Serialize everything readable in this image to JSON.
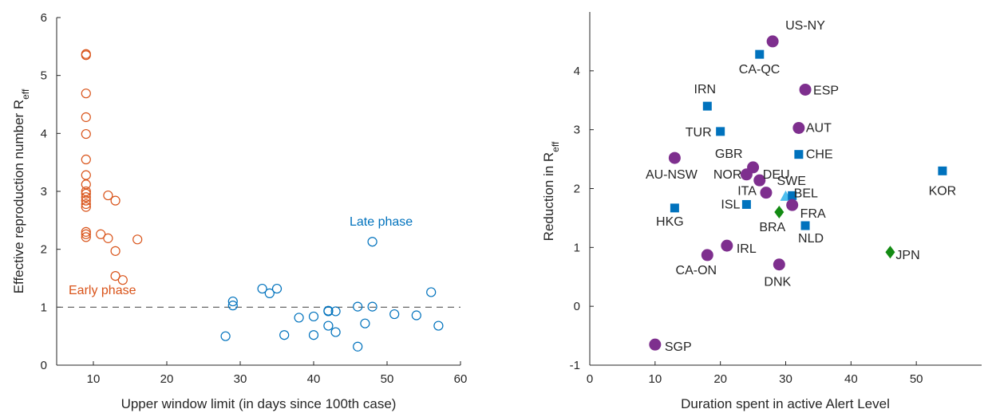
{
  "chart_data": [
    {
      "type": "scatter",
      "xlabel": "Upper window limit (in days since 100th case)",
      "ylabel_main": "Effective reproduction number R",
      "ylabel_sub": "eff",
      "xlim": [
        5,
        60
      ],
      "ylim": [
        0,
        6
      ],
      "xticks": [
        "10",
        "20",
        "30",
        "40",
        "50",
        "60"
      ],
      "yticks": [
        "0",
        "1",
        "2",
        "3",
        "4",
        "5",
        "6"
      ],
      "reference_line_y": 1,
      "series": [
        {
          "name": "Early phase",
          "color": "#D95319",
          "marker": "open-circle",
          "points": [
            [
              9,
              5.37
            ],
            [
              9,
              5.35
            ],
            [
              9,
              4.69
            ],
            [
              9,
              4.28
            ],
            [
              9,
              3.99
            ],
            [
              9,
              3.55
            ],
            [
              9,
              3.28
            ],
            [
              9,
              3.12
            ],
            [
              9,
              3.0
            ],
            [
              9,
              2.96
            ],
            [
              9,
              2.9
            ],
            [
              9,
              2.84
            ],
            [
              9,
              2.78
            ],
            [
              9,
              2.73
            ],
            [
              9,
              2.3
            ],
            [
              9,
              2.26
            ],
            [
              9,
              2.21
            ],
            [
              11,
              2.26
            ],
            [
              12,
              2.93
            ],
            [
              12,
              2.19
            ],
            [
              13,
              2.84
            ],
            [
              13,
              1.97
            ],
            [
              13,
              1.54
            ],
            [
              14,
              1.47
            ],
            [
              16,
              2.17
            ]
          ]
        },
        {
          "name": "Late phase",
          "color": "#0072BD",
          "marker": "open-circle",
          "points": [
            [
              28,
              0.5
            ],
            [
              29,
              1.1
            ],
            [
              29,
              1.03
            ],
            [
              33,
              1.32
            ],
            [
              34,
              1.24
            ],
            [
              35,
              1.32
            ],
            [
              36,
              0.52
            ],
            [
              38,
              0.82
            ],
            [
              40,
              0.84
            ],
            [
              40,
              0.52
            ],
            [
              42,
              0.94
            ],
            [
              42,
              0.93
            ],
            [
              42,
              0.68
            ],
            [
              43,
              0.93
            ],
            [
              43,
              0.57
            ],
            [
              46,
              1.01
            ],
            [
              46,
              0.32
            ],
            [
              47,
              0.72
            ],
            [
              48,
              1.01
            ],
            [
              48,
              2.13
            ],
            [
              51,
              0.88
            ],
            [
              54,
              0.86
            ],
            [
              56,
              1.26
            ],
            [
              57,
              0.68
            ]
          ]
        }
      ]
    },
    {
      "type": "scatter",
      "xlabel": "Duration spent in active Alert Level",
      "ylabel_main": "Reduction in R",
      "ylabel_sub": "eff",
      "xlim": [
        0,
        60
      ],
      "ylim": [
        -1,
        5
      ],
      "xticks": [
        "0",
        "10",
        "20",
        "30",
        "40",
        "50"
      ],
      "yticks": [
        "-1",
        "0",
        "1",
        "2",
        "3",
        "4"
      ],
      "points": [
        {
          "label": "US-NY",
          "x": 28,
          "y": 4.5,
          "marker": "circle",
          "color": "#7E2F8E"
        },
        {
          "label": "CA-QC",
          "x": 26,
          "y": 4.28,
          "marker": "square",
          "color": "#0072BD"
        },
        {
          "label": "ESP",
          "x": 33,
          "y": 3.68,
          "marker": "circle",
          "color": "#7E2F8E"
        },
        {
          "label": "IRN",
          "x": 18,
          "y": 3.4,
          "marker": "square",
          "color": "#0072BD"
        },
        {
          "label": "AUT",
          "x": 32,
          "y": 3.03,
          "marker": "circle",
          "color": "#7E2F8E"
        },
        {
          "label": "TUR",
          "x": 20,
          "y": 2.97,
          "marker": "square",
          "color": "#0072BD"
        },
        {
          "label": "CHE",
          "x": 32,
          "y": 2.58,
          "marker": "square",
          "color": "#0072BD"
        },
        {
          "label": "AU-NSW",
          "x": 13,
          "y": 2.52,
          "marker": "circle",
          "color": "#7E2F8E"
        },
        {
          "label": "GBR",
          "x": 25,
          "y": 2.36,
          "marker": "circle",
          "color": "#7E2F8E"
        },
        {
          "label": "DEU",
          "x": 26,
          "y": 2.14,
          "marker": "circle",
          "color": "#7E2F8E"
        },
        {
          "label": "NOR",
          "x": 24,
          "y": 2.24,
          "marker": "circle",
          "color": "#7E2F8E"
        },
        {
          "label": "KOR",
          "x": 54,
          "y": 2.3,
          "marker": "square",
          "color": "#0072BD"
        },
        {
          "label": "ITA",
          "x": 27,
          "y": 1.93,
          "marker": "circle",
          "color": "#7E2F8E"
        },
        {
          "label": "SWE",
          "x": 30,
          "y": 1.86,
          "marker": "triangle",
          "color": "#4DBEEE"
        },
        {
          "label": "BEL",
          "x": 31,
          "y": 1.88,
          "marker": "square",
          "color": "#0072BD"
        },
        {
          "label": "ISL",
          "x": 24,
          "y": 1.73,
          "marker": "square",
          "color": "#0072BD"
        },
        {
          "label": "FRA",
          "x": 31,
          "y": 1.72,
          "marker": "circle",
          "color": "#7E2F8E"
        },
        {
          "label": "HKG",
          "x": 13,
          "y": 1.67,
          "marker": "square",
          "color": "#0072BD"
        },
        {
          "label": "BRA",
          "x": 29,
          "y": 1.6,
          "marker": "diamond",
          "color": "#138B13"
        },
        {
          "label": "NLD",
          "x": 33,
          "y": 1.37,
          "marker": "square",
          "color": "#0072BD"
        },
        {
          "label": "IRL",
          "x": 21,
          "y": 1.03,
          "marker": "circle",
          "color": "#7E2F8E"
        },
        {
          "label": "JPN",
          "x": 46,
          "y": 0.92,
          "marker": "diamond",
          "color": "#138B13"
        },
        {
          "label": "CA-ON",
          "x": 18,
          "y": 0.87,
          "marker": "circle",
          "color": "#7E2F8E"
        },
        {
          "label": "DNK",
          "x": 29,
          "y": 0.71,
          "marker": "circle",
          "color": "#7E2F8E"
        },
        {
          "label": "SGP",
          "x": 10,
          "y": -0.65,
          "marker": "circle",
          "color": "#7E2F8E"
        }
      ]
    }
  ]
}
